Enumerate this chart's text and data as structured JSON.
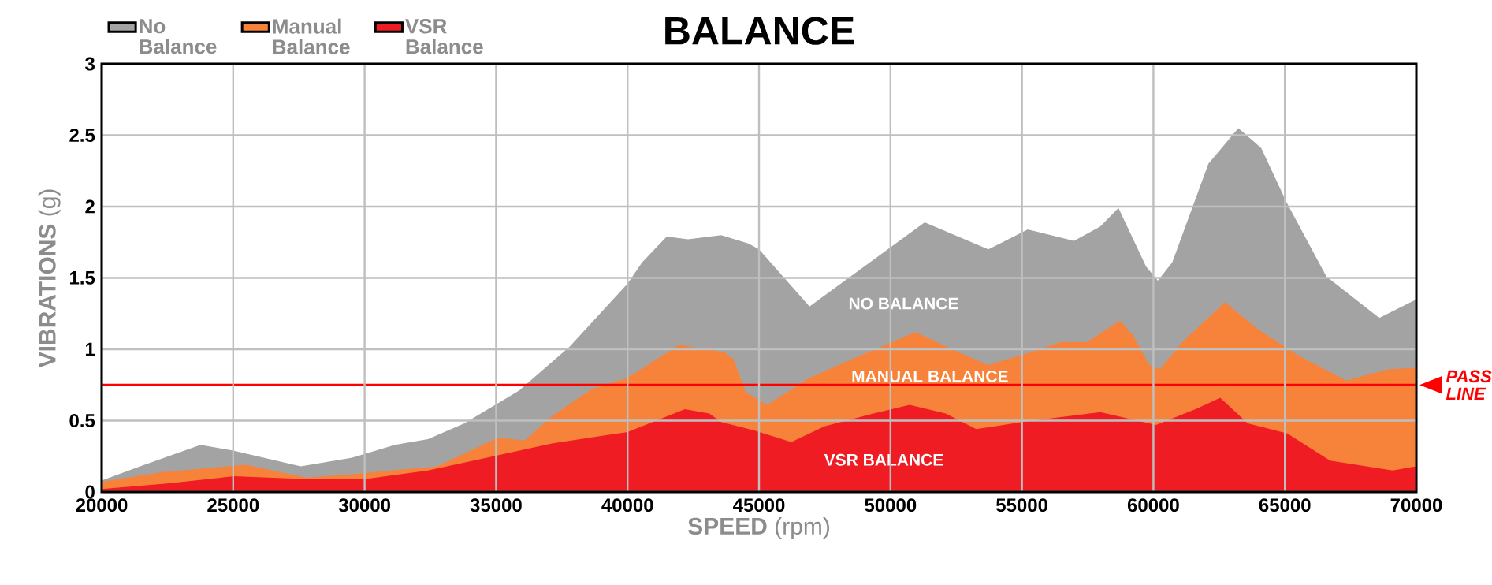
{
  "chart_data": {
    "type": "area",
    "title": "BALANCE",
    "xlabel": "**SPEED** (rpm)",
    "ylabel": "**VIBRATIONS** (g)",
    "xlim": [
      20000,
      70000
    ],
    "ylim": [
      0,
      3
    ],
    "xticks": [
      20000,
      25000,
      30000,
      35000,
      40000,
      45000,
      50000,
      55000,
      60000,
      65000,
      70000
    ],
    "yticks": [
      0,
      0.5,
      1,
      1.5,
      2,
      2.5,
      3
    ],
    "grid": true,
    "legend": "top left",
    "series": [
      {
        "name": "No Balance",
        "color": "#a3a3a3",
        "x": [
          20000,
          21460,
          23760,
          25000,
          27570,
          29530,
          31150,
          32410,
          33790,
          35870,
          37120,
          37810,
          40000,
          40560,
          41490,
          42300,
          43560,
          44610,
          45000,
          46920,
          51300,
          53720,
          55220,
          56980,
          57980,
          58670,
          59720,
          60170,
          60720,
          62090,
          63230,
          64100,
          65090,
          66580,
          68590,
          70000
        ],
        "values": [
          0.08,
          0.18,
          0.33,
          0.29,
          0.18,
          0.24,
          0.33,
          0.37,
          0.48,
          0.71,
          0.91,
          1.02,
          1.46,
          1.61,
          1.79,
          1.77,
          1.8,
          1.74,
          1.7,
          1.3,
          1.89,
          1.7,
          1.84,
          1.76,
          1.86,
          1.99,
          1.58,
          1.48,
          1.61,
          2.3,
          2.55,
          2.41,
          2.02,
          1.51,
          1.22,
          1.35
        ]
      },
      {
        "name": "Manual Balance",
        "color": "#f7833a",
        "x": [
          20000,
          22320,
          25490,
          27800,
          29880,
          32760,
          35060,
          36090,
          37120,
          38620,
          40000,
          41960,
          43680,
          44040,
          44490,
          45300,
          46920,
          48660,
          50950,
          52450,
          53720,
          55000,
          56480,
          57470,
          58730,
          59220,
          59840,
          60240,
          61100,
          62720,
          63980,
          65480,
          67330,
          68960,
          70000
        ],
        "values": [
          0.07,
          0.14,
          0.19,
          0.1,
          0.13,
          0.18,
          0.38,
          0.36,
          0.53,
          0.72,
          0.8,
          1.03,
          0.98,
          0.93,
          0.7,
          0.61,
          0.8,
          0.94,
          1.12,
          0.99,
          0.89,
          0.96,
          1.05,
          1.05,
          1.2,
          1.1,
          0.89,
          0.86,
          1.05,
          1.33,
          1.14,
          0.96,
          0.78,
          0.86,
          0.87
        ]
      },
      {
        "name": "VSR Balance",
        "color": "#f01c24",
        "x": [
          20000,
          22490,
          25040,
          27800,
          30000,
          32410,
          35650,
          37120,
          40000,
          42180,
          43110,
          43560,
          44850,
          46230,
          47490,
          49350,
          50730,
          52100,
          53260,
          55000,
          57980,
          60100,
          61600,
          62540,
          63590,
          65090,
          66720,
          69100,
          70000
        ],
        "values": [
          0.02,
          0.06,
          0.11,
          0.09,
          0.09,
          0.15,
          0.28,
          0.34,
          0.42,
          0.58,
          0.55,
          0.49,
          0.43,
          0.35,
          0.46,
          0.55,
          0.61,
          0.55,
          0.44,
          0.49,
          0.56,
          0.47,
          0.58,
          0.66,
          0.48,
          0.41,
          0.22,
          0.15,
          0.18
        ]
      }
    ],
    "ref_lines": [
      {
        "axis": "y",
        "value": 0.75,
        "label": "PASS LINE",
        "color": "#ff0000"
      }
    ],
    "annotations": [
      "NO BALANCE",
      "MANUAL BALANCE",
      "VSR BALANCE"
    ]
  }
}
